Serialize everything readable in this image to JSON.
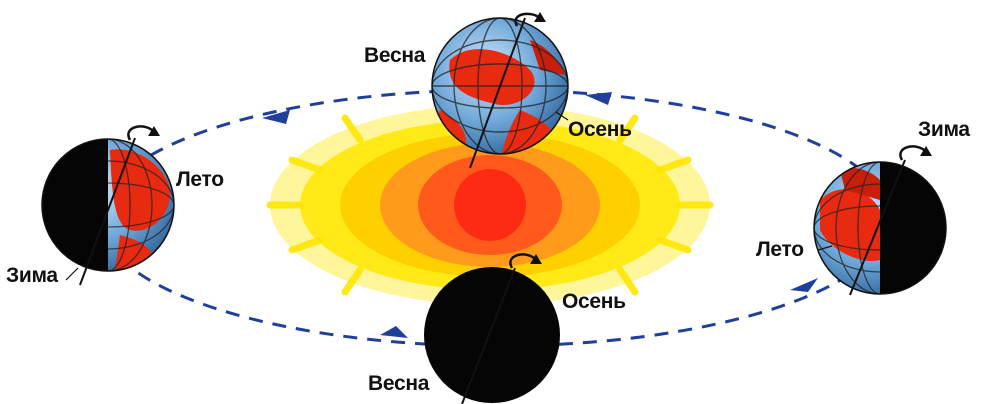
{
  "diagram": {
    "colors": {
      "orbit": "#1f3f9a",
      "sun_core": "#ff2a1a",
      "sun_glow": "#ffe600",
      "ocean": "#6fa8d8",
      "land": "#e82a10",
      "night": "#050505"
    },
    "labels": {
      "top_spring": "Весна",
      "top_autumn": "Осень",
      "left_summer": "Лето",
      "left_winter": "Зима",
      "right_winter": "Зима",
      "right_summer": "Лето",
      "bottom_autumn": "Осень",
      "bottom_spring": "Весна"
    },
    "icons": [
      "sun-icon",
      "earth-globe-icon",
      "rotation-arrow-icon",
      "orbit-arrow-icon"
    ]
  }
}
